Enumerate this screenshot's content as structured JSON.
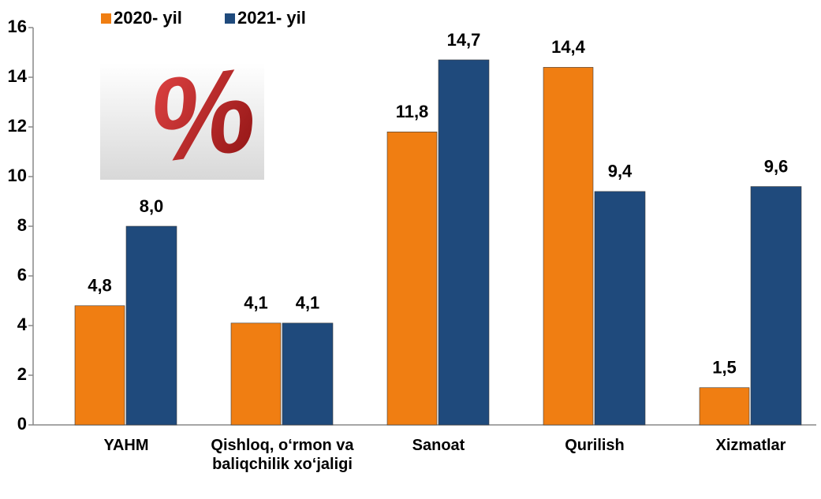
{
  "chart_data": {
    "type": "bar",
    "annotation": "%",
    "categories": [
      "YAHM",
      "Qishloq, o‘rmon va baliqchilik xo‘jaligi",
      "Sanoat",
      "Qurilish",
      "Xizmatlar"
    ],
    "series": [
      {
        "name": "2020- yil",
        "color": "#f07e12",
        "values": [
          4.8,
          4.1,
          11.8,
          14.4,
          1.5
        ],
        "value_labels": [
          "4,8",
          "4,1",
          "11,8",
          "14,4",
          "1,5"
        ]
      },
      {
        "name": "2021- yil",
        "color": "#1f4a7c",
        "values": [
          8.0,
          4.1,
          14.7,
          9.4,
          9.6
        ],
        "value_labels": [
          "8,0",
          "4,1",
          "14,7",
          "9,4",
          "9,6"
        ]
      }
    ],
    "ylim": [
      0,
      16
    ],
    "yticks": [
      0,
      2,
      4,
      6,
      8,
      10,
      12,
      14,
      16
    ],
    "legend": "top"
  }
}
